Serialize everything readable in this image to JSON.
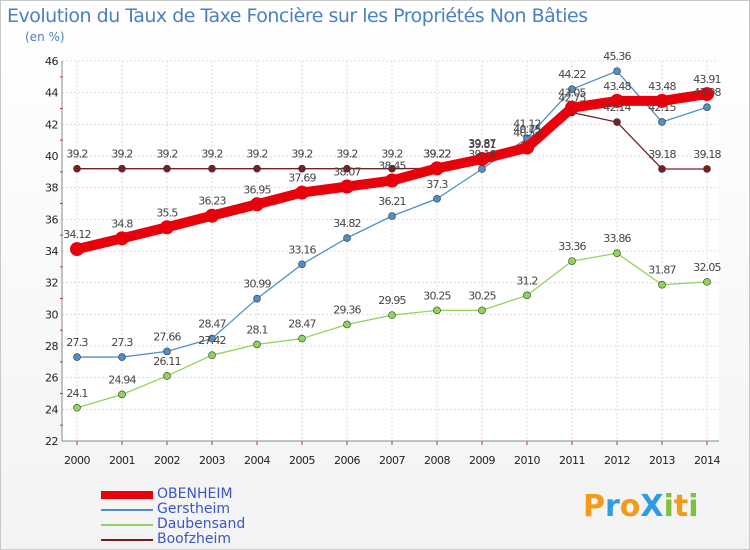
{
  "title": "Evolution du Taux de Taxe Foncière sur les Propriétés Non Bâties",
  "unit_label": "(en %)",
  "logo": {
    "text": "ProXiti",
    "letters": [
      "P",
      "r",
      "o",
      "X",
      "i",
      "t",
      "i"
    ],
    "colors": [
      "#f29a1a",
      "#2f9be0",
      "#f29a1a",
      "#2f9be0",
      "#7cc23c",
      "#f29a1a",
      "#7cc23c"
    ]
  },
  "chart_data": {
    "type": "line",
    "x": [
      2000,
      2001,
      2002,
      2003,
      2004,
      2005,
      2006,
      2007,
      2008,
      2009,
      2010,
      2011,
      2012,
      2013,
      2014
    ],
    "ylim": [
      22,
      46
    ],
    "yticks": [
      22,
      24,
      26,
      28,
      30,
      32,
      34,
      36,
      38,
      40,
      42,
      44,
      46
    ],
    "grid": true,
    "legend_position": "bottom-left",
    "series": [
      {
        "name": "OBENHEIM",
        "color": "#e8000b",
        "values": [
          34.12,
          34.8,
          35.5,
          36.23,
          36.95,
          37.69,
          38.07,
          38.45,
          39.22,
          39.81,
          40.53,
          43.05,
          43.48,
          43.48,
          43.91
        ],
        "labels": [
          "34.12",
          "34.8",
          "35.5",
          "36.23",
          "36.95",
          "37.69",
          "38.07",
          "38.45",
          "39.22",
          "39.81",
          "40.53",
          "43.05",
          "43.48",
          "43.48",
          "43.91"
        ]
      },
      {
        "name": "Gerstheim",
        "color": "#4f8fc8",
        "values": [
          27.3,
          27.3,
          27.66,
          28.47,
          30.99,
          33.16,
          34.82,
          36.21,
          37.3,
          39.18,
          41.12,
          44.22,
          45.36,
          42.15,
          43.08
        ],
        "labels": [
          "27.3",
          "27.3",
          "27.66",
          "28.47",
          "30.99",
          "33.16",
          "34.82",
          "36.21",
          "37.3",
          "39.18",
          "41.12",
          "44.22",
          "45.36",
          "42.15",
          "43.08"
        ]
      },
      {
        "name": "Daubensand",
        "color": "#8fd45a",
        "values": [
          24.1,
          24.94,
          26.11,
          27.42,
          28.1,
          28.47,
          29.36,
          29.95,
          30.25,
          30.25,
          31.2,
          33.36,
          33.86,
          31.87,
          32.05
        ],
        "labels": [
          "24.1",
          "24.94",
          "26.11",
          "27.42",
          "28.1",
          "28.47",
          "29.36",
          "29.95",
          "30.25",
          "30.25",
          "31.2",
          "33.36",
          "33.86",
          "31.87",
          "32.05"
        ]
      },
      {
        "name": "Boofzheim",
        "color": "#7a1e24",
        "values": [
          39.2,
          39.2,
          39.2,
          39.2,
          39.2,
          39.2,
          39.2,
          39.2,
          39.22,
          39.87,
          40.75,
          42.75,
          42.14,
          39.18,
          39.18
        ],
        "labels": [
          "39.2",
          "39.2",
          "39.2",
          "39.2",
          "39.2",
          "39.2",
          "39.2",
          "39.2",
          "39.22",
          "39.87",
          "40.75",
          "42.75",
          "42.14",
          "39.18",
          "39.18"
        ]
      }
    ]
  }
}
